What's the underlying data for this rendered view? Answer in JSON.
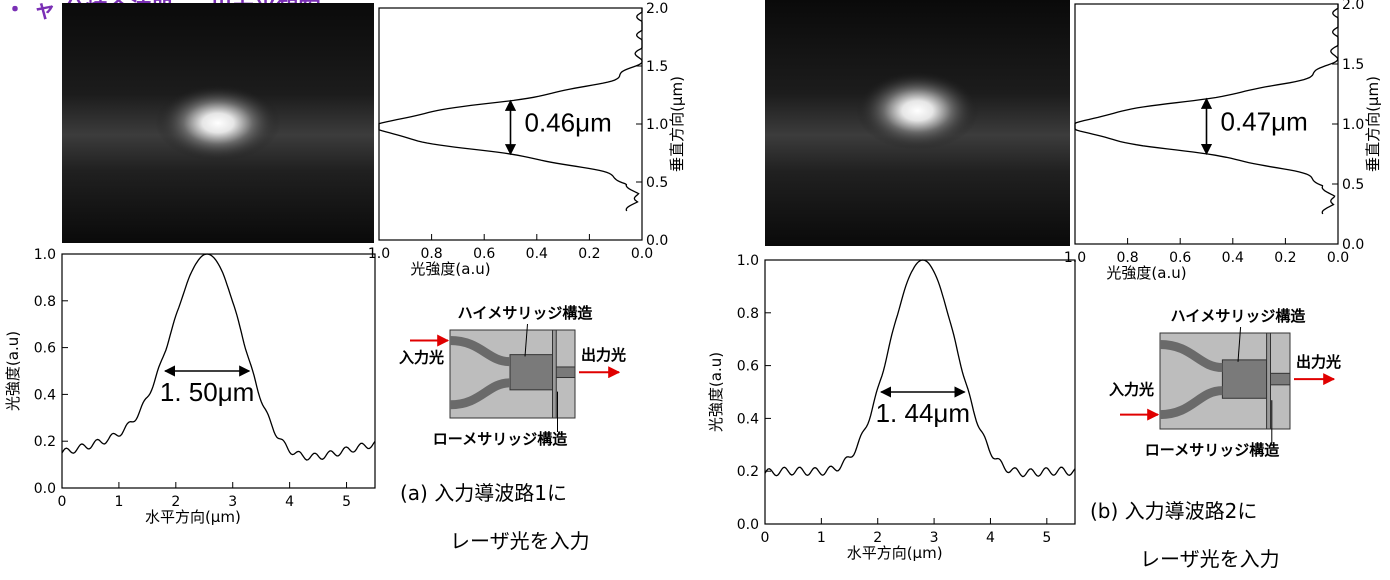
{
  "header": {
    "title_fragment": "・ ャ 分岐合波器 … 出力光観察"
  },
  "panels": [
    {
      "id": "a",
      "mode_image": {
        "spot_cx": 0.5,
        "spot_cy": 0.5
      },
      "vertical_profile": {
        "type": "line",
        "xlabel": "光強度(a.u)",
        "ylabel": "垂直方向(μm)",
        "x_ticks": [
          "1.0",
          "0.8",
          "0.6",
          "0.4",
          "0.2",
          "0.0"
        ],
        "y_ticks": [
          "0.0",
          "0.5",
          "1.0",
          "1.5",
          "2.0"
        ],
        "xlim": [
          1.0,
          0.0
        ],
        "ylim": [
          0.0,
          2.0
        ],
        "peak_y": 0.97,
        "fwhm_label": "0.46μm"
      },
      "horizontal_profile": {
        "type": "line",
        "xlabel": "水平方向(μm)",
        "ylabel": "光強度(a.u)",
        "x_ticks": [
          "0",
          "1",
          "2",
          "3",
          "4",
          "5"
        ],
        "y_ticks": [
          "0.0",
          "0.2",
          "0.4",
          "0.6",
          "0.8",
          "1.0"
        ],
        "xlim": [
          0,
          5.5
        ],
        "ylim": [
          0,
          1.0
        ],
        "peak_x": 2.55,
        "fwhm_label": "1. 50μm"
      },
      "device": {
        "high_mesa_label": "ハイメサリッジ構造",
        "low_mesa_label": "ローメサリッジ構造",
        "input_label": "入力光",
        "output_label": "出力光"
      },
      "caption_line1": "(a) 入力導波路1に",
      "caption_line2": "レーザ光を入力"
    },
    {
      "id": "b",
      "mode_image": {
        "spot_cx": 0.5,
        "spot_cy": 0.45
      },
      "vertical_profile": {
        "type": "line",
        "xlabel": "光強度(a.u)",
        "ylabel": "垂直方向(μm)",
        "x_ticks": [
          "1.0",
          "0.8",
          "0.6",
          "0.4",
          "0.2",
          "0.0"
        ],
        "y_ticks": [
          "0.0",
          "0.5",
          "1.0",
          "1.5",
          "2.0"
        ],
        "xlim": [
          1.0,
          0.0
        ],
        "ylim": [
          0.0,
          2.0
        ],
        "peak_y": 0.98,
        "fwhm_label": "0.47μm"
      },
      "horizontal_profile": {
        "type": "line",
        "xlabel": "水平方向(μm)",
        "ylabel": "光強度(a.u)",
        "x_ticks": [
          "0",
          "1",
          "2",
          "3",
          "4",
          "5"
        ],
        "y_ticks": [
          "0.0",
          "0.2",
          "0.4",
          "0.6",
          "0.8",
          "1.0"
        ],
        "xlim": [
          0,
          5.5
        ],
        "ylim": [
          0,
          1.0
        ],
        "peak_x": 2.8,
        "fwhm_label": "1. 44μm"
      },
      "device": {
        "high_mesa_label": "ハイメサリッジ構造",
        "low_mesa_label": "ローメサリッジ構造",
        "input_label": "入力光",
        "output_label": "出力光"
      },
      "caption_line1": "(b) 入力導波路2に",
      "caption_line2": "レーザ光を入力"
    }
  ]
}
